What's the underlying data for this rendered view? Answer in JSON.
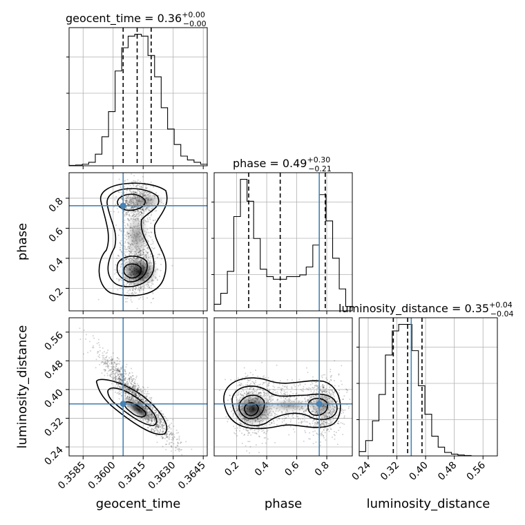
{
  "chart_data": {
    "type": "corner",
    "parameters": [
      "geocent_time",
      "phase",
      "luminosity_distance"
    ],
    "titles": {
      "geocent_time": {
        "name": "geocent_time",
        "median": "0.36",
        "plus": "+0.00",
        "minus": "−0.00"
      },
      "phase": {
        "name": "phase",
        "median": "0.49",
        "plus": "+0.30",
        "minus": "−0.21"
      },
      "luminosity_distance": {
        "name": "luminosity_distance",
        "median": "0.35",
        "plus": "+0.04",
        "minus": "−0.04"
      }
    },
    "axis_labels": {
      "geocent_time": "geocent_time",
      "phase": "phase",
      "luminosity_distance": "luminosity_distance"
    },
    "ranges": {
      "geocent_time": [
        0.3578,
        0.3647
      ],
      "phase": [
        0.05,
        0.97
      ],
      "luminosity_distance": [
        0.215,
        0.6
      ]
    },
    "ticks": {
      "geocent_time": [
        0.3585,
        0.36,
        0.3615,
        0.363,
        0.3645
      ],
      "phase": [
        0.2,
        0.4,
        0.6,
        0.8
      ],
      "luminosity_distance": [
        0.24,
        0.32,
        0.4,
        0.48,
        0.56
      ]
    },
    "tick_labels": {
      "geocent_time": [
        "0.3585",
        "0.3600",
        "0.3615",
        "0.3630",
        "0.3645"
      ],
      "phase": [
        "0.2",
        "0.4",
        "0.6",
        "0.8"
      ],
      "luminosity_distance": [
        "0.24",
        "0.32",
        "0.40",
        "0.48",
        "0.56"
      ]
    },
    "truths": {
      "geocent_time": 0.3605,
      "phase": 0.75,
      "luminosity_distance": 0.36
    },
    "quantiles": {
      "geocent_time": [
        0.3605,
        0.3612,
        0.3619
      ],
      "phase": [
        0.28,
        0.49,
        0.79
      ],
      "luminosity_distance": [
        0.31,
        0.35,
        0.39
      ]
    },
    "histograms": {
      "geocent_time": {
        "edges": [
          0.3578,
          0.35813,
          0.35846,
          0.35878,
          0.35911,
          0.35944,
          0.35977,
          0.3601,
          0.36043,
          0.36075,
          0.36108,
          0.36141,
          0.36174,
          0.36207,
          0.3624,
          0.36272,
          0.36305,
          0.36338,
          0.36371,
          0.36404,
          0.36437,
          0.3647
        ],
        "counts": [
          1,
          2,
          4,
          9,
          30,
          75,
          140,
          245,
          305,
          335,
          340,
          335,
          285,
          230,
          150,
          95,
          55,
          25,
          15,
          9,
          4
        ]
      },
      "phase": {
        "edges": [
          0.05,
          0.094,
          0.138,
          0.181,
          0.225,
          0.269,
          0.313,
          0.357,
          0.4,
          0.444,
          0.488,
          0.532,
          0.576,
          0.62,
          0.663,
          0.707,
          0.751,
          0.795,
          0.839,
          0.883,
          0.926,
          0.97
        ],
        "counts": [
          15,
          40,
          90,
          215,
          300,
          250,
          165,
          95,
          78,
          72,
          72,
          78,
          78,
          82,
          100,
          150,
          265,
          205,
          120,
          50,
          10
        ]
      },
      "luminosity_distance": {
        "edges": [
          0.215,
          0.233,
          0.252,
          0.27,
          0.288,
          0.307,
          0.325,
          0.343,
          0.362,
          0.38,
          0.398,
          0.417,
          0.435,
          0.453,
          0.472,
          0.49,
          0.508,
          0.527,
          0.545,
          0.563,
          0.582,
          0.6
        ],
        "counts": [
          10,
          35,
          80,
          140,
          230,
          285,
          300,
          300,
          240,
          160,
          95,
          45,
          20,
          8,
          4,
          2,
          1,
          0,
          0,
          0,
          0
        ]
      }
    },
    "grid": true
  }
}
